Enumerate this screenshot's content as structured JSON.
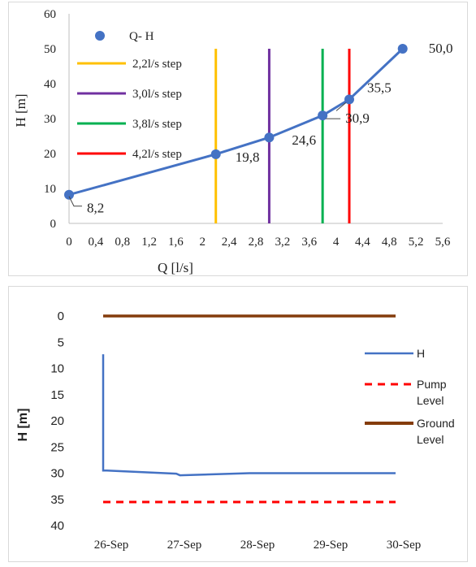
{
  "chart_data": [
    {
      "type": "scatter",
      "xlabel": "Q [l/s]",
      "ylabel": "H [m]",
      "xlim": [
        0,
        5.6
      ],
      "ylim": [
        0,
        60
      ],
      "x_ticks": [
        "0",
        "0,4",
        "0,8",
        "1,2",
        "1,6",
        "2",
        "2,4",
        "2,8",
        "3,2",
        "3,6",
        "4",
        "4,4",
        "4,8",
        "5,2",
        "5,6"
      ],
      "y_ticks": [
        "0",
        "10",
        "20",
        "30",
        "40",
        "50",
        "60"
      ],
      "series": [
        {
          "name": "Q- H",
          "color": "#4472c4",
          "x": [
            0,
            2.2,
            3.0,
            3.8,
            4.2,
            5.0
          ],
          "y": [
            8.2,
            19.8,
            24.6,
            30.9,
            35.5,
            50.0
          ],
          "labels": [
            "8,2",
            "19,8",
            "24,6",
            "30,9",
            "35,5",
            "50,0"
          ]
        }
      ],
      "vertical_lines": [
        {
          "name": "2,2l/s step",
          "x": 2.2,
          "color": "#ffc000"
        },
        {
          "name": "3,0l/s step",
          "x": 3.0,
          "color": "#7030a0"
        },
        {
          "name": "3,8l/s step",
          "x": 3.8,
          "color": "#00b050"
        },
        {
          "name": "4,2l/s step",
          "x": 4.2,
          "color": "#ff0000"
        }
      ],
      "legend_position": "top-left"
    },
    {
      "type": "line",
      "ylabel": "H [m]",
      "y_inverted": true,
      "ylim": [
        0,
        40
      ],
      "x_ticks": [
        "26-Sep",
        "27-Sep",
        "28-Sep",
        "29-Sep",
        "30-Sep"
      ],
      "y_ticks": [
        "0",
        "5",
        "10",
        "15",
        "20",
        "25",
        "30",
        "35",
        "40"
      ],
      "series": [
        {
          "name": "H",
          "color": "#4472c4",
          "style": "solid",
          "x": [
            0,
            0,
            0.05,
            1.0,
            1.05,
            2.0,
            3.0,
            4.0
          ],
          "y": [
            7.3,
            29.5,
            29.5,
            30.1,
            30.4,
            30.0,
            30.0,
            30.0
          ]
        },
        {
          "name": "Pump Level",
          "color": "#ff0000",
          "style": "dashed",
          "x": [
            0,
            4
          ],
          "y": [
            35.5,
            35.5
          ]
        },
        {
          "name": "Ground Level",
          "color": "#843c0c",
          "style": "solid",
          "x": [
            0,
            4
          ],
          "y": [
            0,
            0
          ]
        }
      ],
      "legend_position": "right"
    }
  ]
}
